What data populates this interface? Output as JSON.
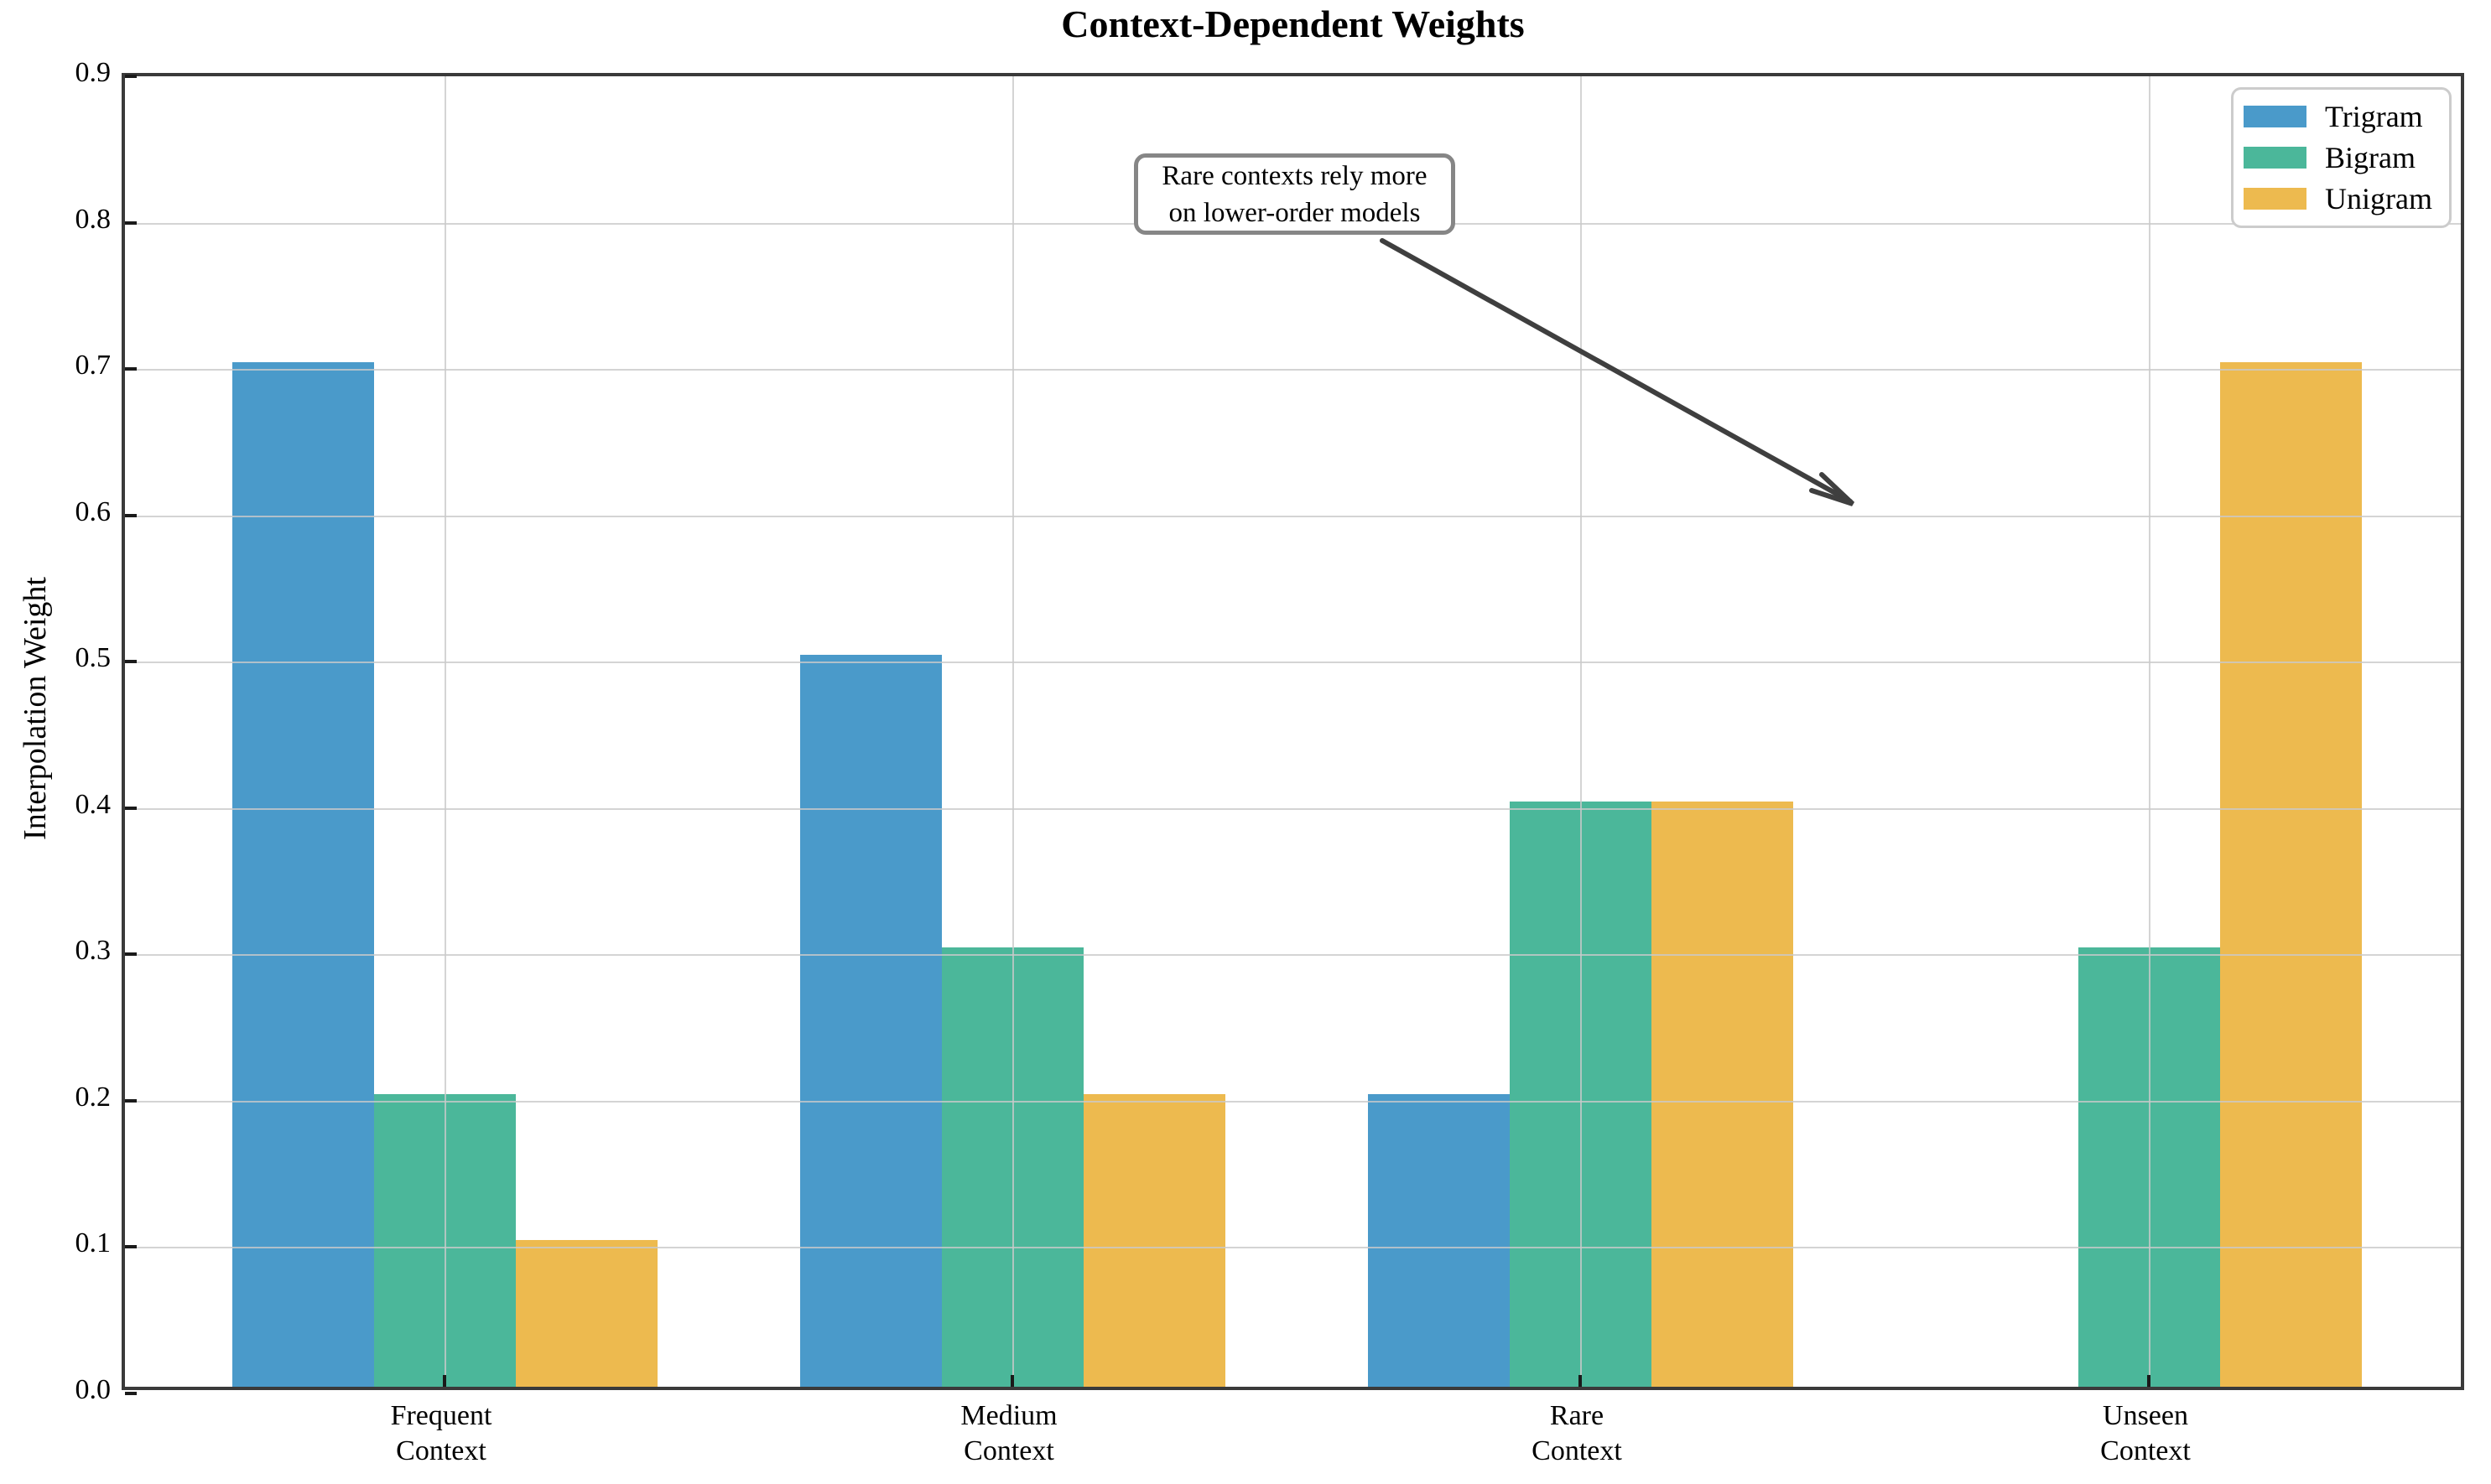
{
  "title": "Context-Dependent Weights",
  "y_axis_label": "Interpolation Weight",
  "annotation": {
    "line1": "Rare contexts rely more",
    "line2": "on lower-order models"
  },
  "legend": {
    "position": "upper right",
    "entries": [
      {
        "label": "Trigram",
        "color": "#4A9ACA"
      },
      {
        "label": "Bigram",
        "color": "#4BB79A"
      },
      {
        "label": "Unigram",
        "color": "#EDBA4F"
      }
    ]
  },
  "chart_data": {
    "type": "bar",
    "categories": [
      [
        "Frequent",
        "Context"
      ],
      [
        "Medium",
        "Context"
      ],
      [
        "Rare",
        "Context"
      ],
      [
        "Unseen",
        "Context"
      ]
    ],
    "series": [
      {
        "name": "Trigram",
        "color": "#4A9ACA",
        "values": [
          0.7,
          0.5,
          0.2,
          0.0
        ]
      },
      {
        "name": "Bigram",
        "color": "#4BB79A",
        "values": [
          0.2,
          0.3,
          0.4,
          0.3
        ]
      },
      {
        "name": "Unigram",
        "color": "#EDBA4F",
        "values": [
          0.1,
          0.2,
          0.4,
          0.7
        ]
      }
    ],
    "title": "Context-Dependent Weights",
    "xlabel": "",
    "ylabel": "Interpolation Weight",
    "ylim": [
      0.0,
      0.9
    ],
    "yticks": [
      "0.0",
      "0.1",
      "0.2",
      "0.3",
      "0.4",
      "0.5",
      "0.6",
      "0.7",
      "0.8",
      "0.9"
    ],
    "grid": true,
    "legend_position": "upper right",
    "annotation_arrow_points_to_y": 0.6
  },
  "colors": {
    "spine": "#3a3a3a",
    "gridline": "#c9c9c9",
    "arrow": "#3f3f3f",
    "annotation_border": "#868686",
    "legend_border": "#cccccc"
  }
}
